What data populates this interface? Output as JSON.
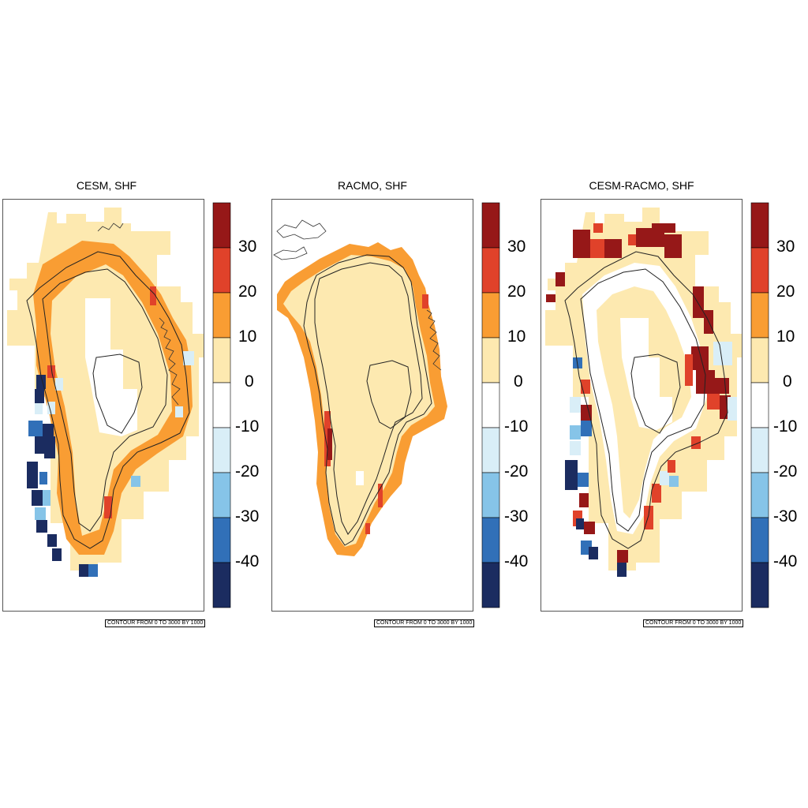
{
  "colors": {
    "levels": [
      "#1b2c60",
      "#3170b8",
      "#86c4e8",
      "#d9eef7",
      "#ffffff",
      "#fde9b0",
      "#f99d33",
      "#e0422a",
      "#961818"
    ]
  },
  "colorbar_labels": [
    "30",
    "20",
    "10",
    "0",
    "-10",
    "-20",
    "-30",
    "-40"
  ],
  "panels": [
    {
      "title": "CESM, SHF",
      "contour_note": "CONTOUR FROM 0 TO 3000 BY 1000"
    },
    {
      "title": "RACMO, SHF",
      "contour_note": "CONTOUR FROM 0 TO 3000 BY 1000"
    },
    {
      "title": "CESM-RACMO, SHF",
      "contour_note": "CONTOUR FROM 0 TO 3000 BY 1000"
    }
  ]
}
